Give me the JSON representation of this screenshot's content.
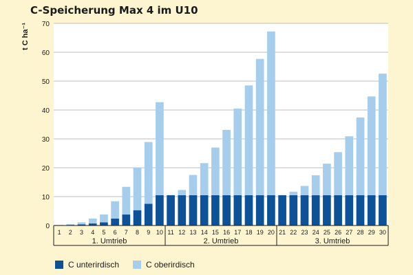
{
  "chart_data": {
    "type": "bar",
    "stacked": true,
    "title": "C-Speicherung Max 4 im U10",
    "ylabel": "t C ha⁻¹",
    "xlabel": "",
    "ylim": [
      0,
      70
    ],
    "yticks": [
      0,
      10,
      20,
      30,
      40,
      50,
      60,
      70
    ],
    "grid": true,
    "legend_position": "bottom-left",
    "categories": [
      "1",
      "2",
      "3",
      "4",
      "5",
      "6",
      "7",
      "8",
      "9",
      "10",
      "11",
      "12",
      "13",
      "14",
      "15",
      "16",
      "17",
      "18",
      "19",
      "20",
      "21",
      "22",
      "23",
      "24",
      "25",
      "26",
      "27",
      "28",
      "29",
      "30"
    ],
    "groups": [
      {
        "label": "1. Umtrieb",
        "start": 0,
        "end": 9
      },
      {
        "label": "2. Umtrieb",
        "start": 10,
        "end": 19
      },
      {
        "label": "3. Umtrieb",
        "start": 20,
        "end": 29
      }
    ],
    "series": [
      {
        "name": "C unterirdisch",
        "color": "#0d5196",
        "values": [
          0.1,
          0.2,
          0.4,
          0.7,
          1.1,
          2.4,
          3.8,
          5.3,
          7.5,
          10.5,
          10.5,
          10.5,
          10.5,
          10.5,
          10.5,
          10.5,
          10.5,
          10.5,
          10.5,
          10.5,
          10.5,
          10.5,
          10.5,
          10.5,
          10.5,
          10.5,
          10.5,
          10.5,
          10.5,
          10.5
        ]
      },
      {
        "name": "C oberirdisch",
        "color": "#a6cdec",
        "values": [
          0.1,
          0.3,
          0.7,
          1.7,
          2.7,
          6.0,
          9.6,
          14.8,
          21.4,
          32.2,
          0.0,
          1.8,
          7.0,
          11.1,
          16.5,
          22.6,
          30.0,
          38.0,
          47.2,
          56.7,
          0.0,
          1.2,
          3.2,
          6.9,
          10.9,
          14.9,
          20.4,
          26.9,
          34.2,
          42.1
        ]
      }
    ]
  }
}
